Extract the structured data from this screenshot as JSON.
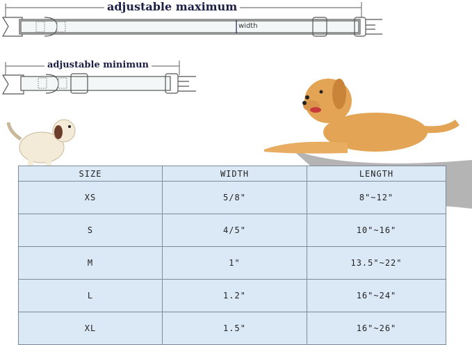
{
  "diagram": {
    "max_label": "adjustable maximum",
    "min_label": "adjustable minimun",
    "width_label": "width"
  },
  "table": {
    "headers": [
      "SIZE",
      "WIDTH",
      "LENGTH"
    ],
    "rows": [
      [
        "XS",
        "5/8\"",
        "8\"~12\""
      ],
      [
        "S",
        "4/5\"",
        "10\"~16\""
      ],
      [
        "M",
        "1\"",
        "13.5\"~22\""
      ],
      [
        "L",
        "1.2\"",
        "16\"~24\""
      ],
      [
        "XL",
        "1.5\"",
        "16\"~26\""
      ]
    ]
  },
  "colors": {
    "table_bg": "#dbe8f5",
    "label": "#1c1f45",
    "dog": "#e3a555"
  }
}
